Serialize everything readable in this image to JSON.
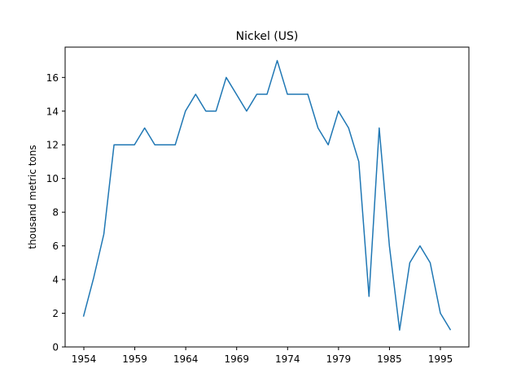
{
  "chart_data": {
    "type": "line",
    "title": "Nickel (US)",
    "xlabel": "",
    "ylabel": "thousand metric tons",
    "x_ticks": [
      "1954",
      "1959",
      "1964",
      "1969",
      "1974",
      "1979",
      "1985",
      "1995"
    ],
    "y_ticks": [
      "0",
      "2",
      "4",
      "6",
      "8",
      "10",
      "12",
      "14",
      "16"
    ],
    "ylim": [
      0,
      17.8
    ],
    "grid": false,
    "line_color": "#1f77b4",
    "series": [
      {
        "values": [
          1.8,
          4.1,
          6.7,
          12,
          12,
          12,
          13,
          12,
          12,
          12,
          14,
          15,
          14,
          14,
          16,
          15,
          14,
          15,
          15,
          17,
          15,
          15,
          15,
          13,
          12,
          14,
          13,
          11,
          3,
          13,
          6,
          1,
          5,
          6,
          5,
          2,
          1
        ]
      }
    ]
  }
}
